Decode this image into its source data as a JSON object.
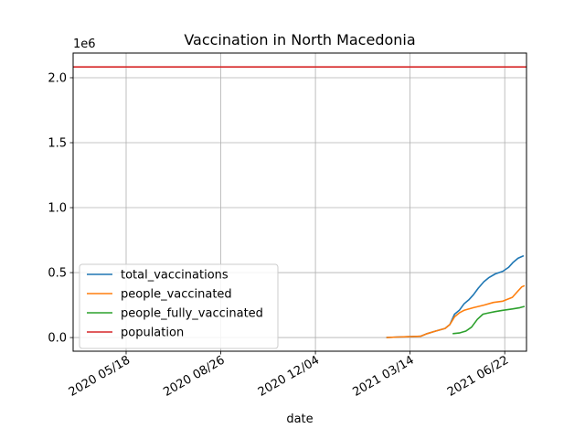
{
  "chart_data": {
    "type": "line",
    "title": "Vaccination in North Macedonia",
    "xlabel": "date",
    "ylabel": "",
    "y_offset_label": "1e6",
    "xlim": [
      "2020-03-23",
      "2021-07-15"
    ],
    "ylim": [
      -0.105,
      2.19
    ],
    "x_ticks": [
      {
        "date": "2020-05-18",
        "label": "2020 05/18"
      },
      {
        "date": "2020-08-26",
        "label": "2020 08/26"
      },
      {
        "date": "2020-12-04",
        "label": "2020 12/04"
      },
      {
        "date": "2021-03-14",
        "label": "2021 03/14"
      },
      {
        "date": "2021-06-22",
        "label": "2021 06/22"
      }
    ],
    "y_ticks": [
      {
        "value": 0.0,
        "label": "0.0"
      },
      {
        "value": 0.5,
        "label": "0.5"
      },
      {
        "value": 1.0,
        "label": "1.0"
      },
      {
        "value": 1.5,
        "label": "1.5"
      },
      {
        "value": 2.0,
        "label": "2.0"
      }
    ],
    "grid": true,
    "legend_position": "lower-left",
    "series": [
      {
        "name": "total_vaccinations",
        "color": "#1f77b4",
        "points": [
          [
            "2021-02-17",
            0.0
          ],
          [
            "2021-03-01",
            0.004
          ],
          [
            "2021-03-14",
            0.007
          ],
          [
            "2021-03-25",
            0.01
          ],
          [
            "2021-04-01",
            0.03
          ],
          [
            "2021-04-10",
            0.05
          ],
          [
            "2021-04-20",
            0.07
          ],
          [
            "2021-04-25",
            0.1
          ],
          [
            "2021-04-30",
            0.18
          ],
          [
            "2021-05-05",
            0.21
          ],
          [
            "2021-05-10",
            0.26
          ],
          [
            "2021-05-15",
            0.29
          ],
          [
            "2021-05-20",
            0.33
          ],
          [
            "2021-05-25",
            0.38
          ],
          [
            "2021-05-31",
            0.43
          ],
          [
            "2021-06-05",
            0.46
          ],
          [
            "2021-06-12",
            0.49
          ],
          [
            "2021-06-20",
            0.51
          ],
          [
            "2021-06-26",
            0.54
          ],
          [
            "2021-07-01",
            0.58
          ],
          [
            "2021-07-06",
            0.61
          ],
          [
            "2021-07-12",
            0.63
          ]
        ]
      },
      {
        "name": "people_vaccinated",
        "color": "#ff7f0e",
        "points": [
          [
            "2021-02-17",
            0.0
          ],
          [
            "2021-03-01",
            0.004
          ],
          [
            "2021-03-14",
            0.007
          ],
          [
            "2021-03-25",
            0.01
          ],
          [
            "2021-04-01",
            0.03
          ],
          [
            "2021-04-10",
            0.05
          ],
          [
            "2021-04-20",
            0.07
          ],
          [
            "2021-04-25",
            0.1
          ],
          [
            "2021-04-30",
            0.16
          ],
          [
            "2021-05-05",
            0.19
          ],
          [
            "2021-05-10",
            0.21
          ],
          [
            "2021-05-20",
            0.23
          ],
          [
            "2021-05-31",
            0.25
          ],
          [
            "2021-06-10",
            0.27
          ],
          [
            "2021-06-20",
            0.28
          ],
          [
            "2021-06-30",
            0.31
          ],
          [
            "2021-07-05",
            0.35
          ],
          [
            "2021-07-10",
            0.39
          ],
          [
            "2021-07-13",
            0.4
          ]
        ]
      },
      {
        "name": "people_fully_vaccinated",
        "color": "#2ca02c",
        "points": [
          [
            "2021-04-28",
            0.03
          ],
          [
            "2021-05-05",
            0.035
          ],
          [
            "2021-05-12",
            0.05
          ],
          [
            "2021-05-18",
            0.08
          ],
          [
            "2021-05-24",
            0.14
          ],
          [
            "2021-05-30",
            0.18
          ],
          [
            "2021-06-05",
            0.19
          ],
          [
            "2021-06-12",
            0.2
          ],
          [
            "2021-06-20",
            0.21
          ],
          [
            "2021-06-30",
            0.22
          ],
          [
            "2021-07-08",
            0.23
          ],
          [
            "2021-07-13",
            0.24
          ]
        ]
      },
      {
        "name": "population",
        "color": "#d62728",
        "points": [
          [
            "2020-03-23",
            2.083
          ],
          [
            "2021-07-15",
            2.083
          ]
        ]
      }
    ]
  }
}
